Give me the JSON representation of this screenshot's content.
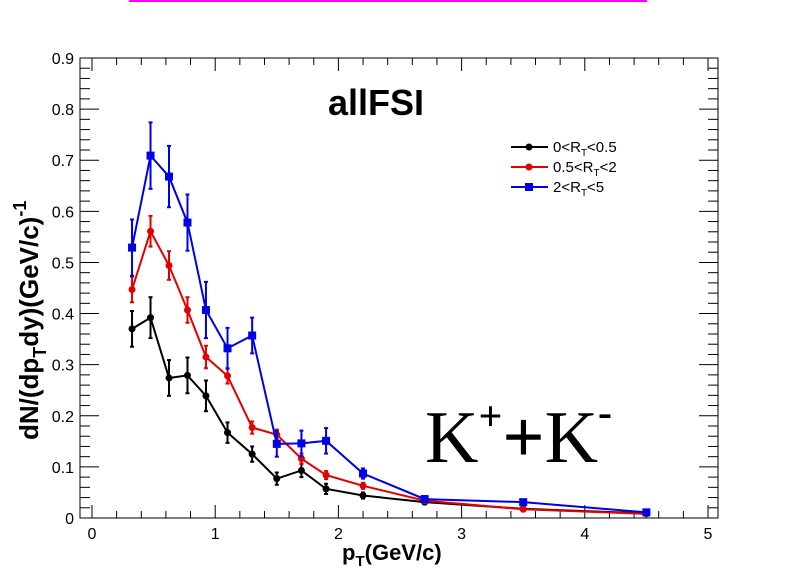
{
  "colors": {
    "top_line": "#ff00ff",
    "series": [
      "#000000",
      "#e00000",
      "#0000e6"
    ]
  },
  "chart_data": {
    "type": "scatter",
    "title": "allFSI",
    "annotation": {
      "base": "K",
      "sup1": "+",
      "plus": "+",
      "base2": "K",
      "sup2": "-"
    },
    "xlabel": {
      "main": "p",
      "sub": "T",
      "rest": "(GeV/c)"
    },
    "ylabel": {
      "part1": "dN/(dp",
      "sub": "T",
      "part2": "dy)(GeV/c)",
      "sup": "-1"
    },
    "xlim": [
      0,
      5
    ],
    "ylim": [
      0,
      0.9
    ],
    "xticks": [
      0,
      1,
      2,
      3,
      4,
      5
    ],
    "xtick_labels": [
      "0",
      "1",
      "2",
      "3",
      "4",
      "5"
    ],
    "yticks": [
      0,
      0.1,
      0.2,
      0.3,
      0.4,
      0.5,
      0.6,
      0.7,
      0.8,
      0.9
    ],
    "ytick_labels": [
      "0",
      "0.1",
      "0.2",
      "0.3",
      "0.4",
      "0.5",
      "0.6",
      "0.7",
      "0.8",
      "0.9"
    ],
    "grid": false,
    "legend_position": "top-right",
    "series": [
      {
        "label_parts": [
          "0<R",
          "T",
          "<0.5"
        ],
        "marker": "circle",
        "color": "#000000",
        "x": [
          0.325,
          0.475,
          0.625,
          0.775,
          0.925,
          1.1,
          1.3,
          1.5,
          1.7,
          1.9,
          2.2,
          2.7,
          3.5,
          4.5
        ],
        "y": [
          0.37,
          0.392,
          0.274,
          0.279,
          0.239,
          0.167,
          0.125,
          0.077,
          0.093,
          0.057,
          0.044,
          0.031,
          0.018,
          0.009
        ],
        "err": [
          0.035,
          0.04,
          0.035,
          0.035,
          0.03,
          0.02,
          0.015,
          0.012,
          0.013,
          0.01,
          0.006,
          0.004,
          0.003,
          0.002
        ]
      },
      {
        "label_parts": [
          "0.5<R",
          "T",
          "<2"
        ],
        "marker": "circle",
        "color": "#e00000",
        "x": [
          0.325,
          0.475,
          0.625,
          0.775,
          0.925,
          1.1,
          1.3,
          1.5,
          1.7,
          1.9,
          2.2,
          2.7,
          3.5,
          4.5
        ],
        "y": [
          0.447,
          0.561,
          0.494,
          0.407,
          0.315,
          0.278,
          0.177,
          0.163,
          0.116,
          0.084,
          0.063,
          0.034,
          0.017,
          0.008
        ],
        "err": [
          0.025,
          0.03,
          0.028,
          0.025,
          0.022,
          0.015,
          0.012,
          0.01,
          0.01,
          0.008,
          0.006,
          0.004,
          0.003,
          0.002
        ]
      },
      {
        "label_parts": [
          "2<R",
          "T",
          "<5"
        ],
        "marker": "square",
        "color": "#0000e6",
        "x": [
          0.325,
          0.475,
          0.625,
          0.775,
          0.925,
          1.1,
          1.3,
          1.5,
          1.7,
          1.9,
          2.2,
          2.7,
          3.5,
          4.5
        ],
        "y": [
          0.529,
          0.709,
          0.668,
          0.578,
          0.407,
          0.332,
          0.357,
          0.145,
          0.146,
          0.151,
          0.087,
          0.037,
          0.031,
          0.011
        ],
        "err": [
          0.055,
          0.065,
          0.06,
          0.055,
          0.055,
          0.04,
          0.035,
          0.025,
          0.025,
          0.025,
          0.01,
          0.006,
          0.005,
          0.003
        ]
      }
    ]
  }
}
